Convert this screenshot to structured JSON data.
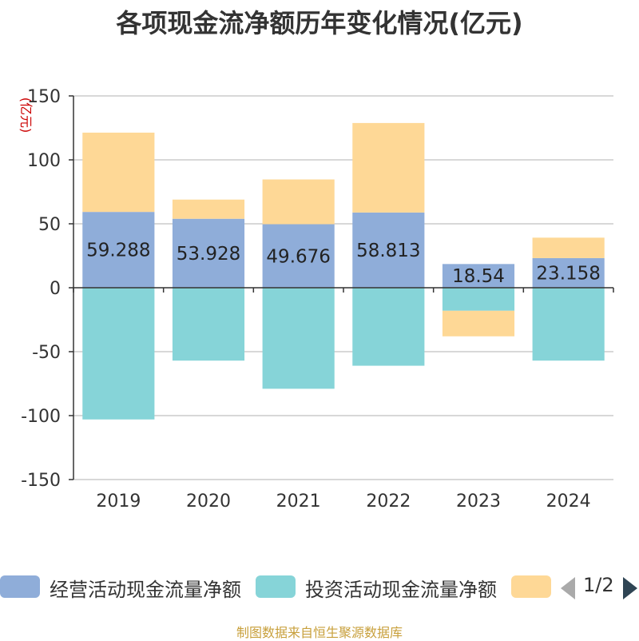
{
  "chart_data": {
    "type": "bar",
    "stacked": true,
    "title": "各项现金流净额历年变化情况(亿元)",
    "ylabel": "(亿元)",
    "xlabel": "",
    "categories": [
      "2019",
      "2020",
      "2021",
      "2022",
      "2023",
      "2024"
    ],
    "ylim": [
      -150,
      150
    ],
    "yticks": [
      150,
      100,
      50,
      0,
      -50,
      -100,
      -150
    ],
    "grid": true,
    "legend_position": "bottom",
    "series": [
      {
        "name": "经营活动现金流量净额",
        "color": "#8fadd9",
        "values": [
          59.288,
          53.928,
          49.676,
          58.813,
          18.54,
          23.158
        ],
        "labels": [
          "59.288",
          "53.928",
          "49.676",
          "58.813",
          "18.54",
          "23.158"
        ]
      },
      {
        "name": "投资活动现金流量净额",
        "color": "#86d4d8",
        "values": [
          -103,
          -57,
          -79,
          -61,
          -18,
          -57
        ]
      },
      {
        "name": "",
        "color": "#fed896",
        "values": [
          62,
          15,
          35,
          70,
          -20,
          16
        ]
      }
    ]
  },
  "legend": {
    "pager_text": "1/2"
  },
  "footer": {
    "source": "制图数据来自恒生聚源数据库"
  }
}
